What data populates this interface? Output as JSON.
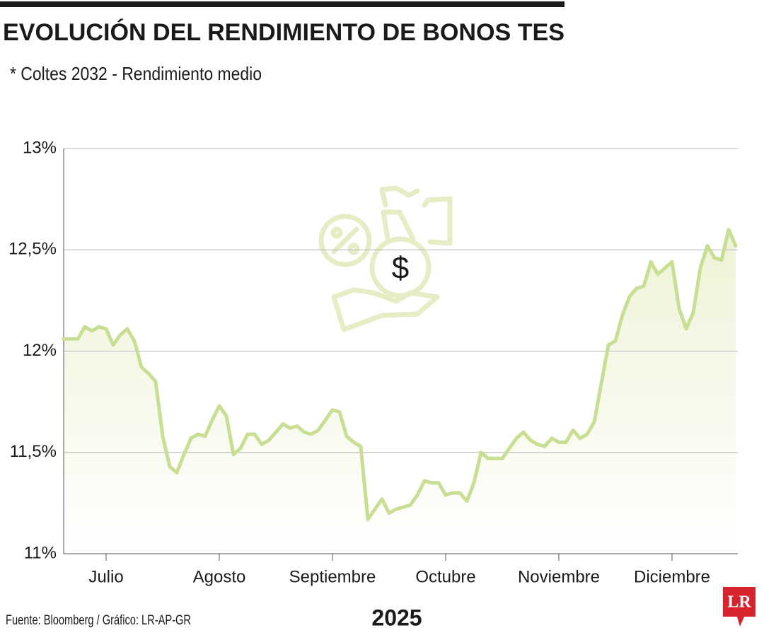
{
  "chart_data": {
    "type": "area",
    "title": "EVOLUCIÓN DEL RENDIMIENTO DE BONOS TES",
    "subtitle": "* Coltes 2032 - Rendimiento medio",
    "x_label": "2025",
    "color": "#c8df93",
    "fill_color": "#eef3d6",
    "grid": true,
    "ylim": [
      11,
      13
    ],
    "yticks": [
      {
        "value": 11,
        "label": "11%"
      },
      {
        "value": 11.5,
        "label": "11,5%"
      },
      {
        "value": 12,
        "label": "12%"
      },
      {
        "value": 12.5,
        "label": "12,5%"
      },
      {
        "value": 13,
        "label": "13%"
      }
    ],
    "categories": [
      null,
      null,
      null,
      null,
      null,
      null,
      "Julio",
      null,
      null,
      null,
      null,
      null,
      null,
      null,
      null,
      null,
      null,
      null,
      null,
      null,
      null,
      null,
      "Agosto",
      null,
      null,
      null,
      null,
      null,
      null,
      null,
      null,
      null,
      null,
      null,
      null,
      null,
      null,
      null,
      "Septiembre",
      null,
      null,
      null,
      null,
      null,
      null,
      null,
      null,
      null,
      null,
      null,
      null,
      null,
      null,
      null,
      "Octubre",
      null,
      null,
      null,
      null,
      null,
      null,
      null,
      null,
      null,
      null,
      null,
      null,
      null,
      null,
      null,
      "Noviembre",
      null,
      null,
      null,
      null,
      null,
      null,
      null,
      null,
      null,
      null,
      null,
      null,
      null,
      null,
      null,
      "Diciembre",
      null,
      null,
      null,
      null,
      null,
      null,
      null,
      null,
      null
    ],
    "values": [
      12.06,
      12.06,
      12.06,
      12.12,
      12.1,
      12.12,
      12.11,
      12.03,
      12.08,
      12.11,
      12.05,
      11.92,
      11.89,
      11.85,
      11.58,
      11.43,
      11.4,
      11.49,
      11.57,
      11.59,
      11.58,
      11.66,
      11.73,
      11.68,
      11.49,
      11.52,
      11.59,
      11.59,
      11.54,
      11.56,
      11.6,
      11.64,
      11.62,
      11.63,
      11.6,
      11.59,
      11.61,
      11.66,
      11.71,
      11.7,
      11.58,
      11.55,
      11.53,
      11.17,
      11.22,
      11.27,
      11.2,
      11.22,
      11.23,
      11.24,
      11.29,
      11.36,
      11.35,
      11.35,
      11.29,
      11.3,
      11.3,
      11.26,
      11.35,
      11.5,
      11.47,
      11.47,
      11.47,
      11.52,
      11.57,
      11.6,
      11.56,
      11.54,
      11.53,
      11.57,
      11.55,
      11.55,
      11.61,
      11.57,
      11.59,
      11.65,
      11.84,
      12.03,
      12.05,
      12.18,
      12.27,
      12.31,
      12.32,
      12.44,
      12.38,
      12.41,
      12.44,
      12.21,
      12.11,
      12.19,
      12.41,
      12.52,
      12.46,
      12.45,
      12.6,
      12.52
    ]
  },
  "source": "Fuente: Bloomberg / Gráfico: LR-AP-GR",
  "logo": "LR"
}
